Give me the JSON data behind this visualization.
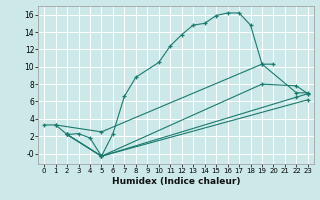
{
  "xlabel": "Humidex (Indice chaleur)",
  "bg_color": "#cce8e8",
  "grid_color": "#ffffff",
  "line_color": "#1a7a6e",
  "xlim": [
    -0.5,
    23.5
  ],
  "ylim": [
    -1.2,
    17.0
  ],
  "xticks": [
    0,
    1,
    2,
    3,
    4,
    5,
    6,
    7,
    8,
    9,
    10,
    11,
    12,
    13,
    14,
    15,
    16,
    17,
    18,
    19,
    20,
    21,
    22,
    23
  ],
  "yticks": [
    0,
    2,
    4,
    6,
    8,
    10,
    12,
    14,
    16
  ],
  "ytick_labels": [
    "-0",
    "2",
    "4",
    "6",
    "8",
    "10",
    "12",
    "14",
    "16"
  ],
  "series": [
    {
      "x": [
        0,
        1,
        2,
        3,
        4,
        5,
        6,
        7,
        8,
        10,
        11,
        12,
        13,
        14,
        15,
        16,
        17,
        18,
        19,
        20
      ],
      "y": [
        3.3,
        3.3,
        2.2,
        2.3,
        1.8,
        -0.3,
        2.3,
        6.6,
        8.8,
        10.5,
        12.4,
        13.7,
        14.8,
        15.0,
        15.9,
        16.2,
        16.2,
        14.8,
        10.3,
        10.3
      ]
    },
    {
      "x": [
        1,
        5,
        19,
        22,
        23
      ],
      "y": [
        3.3,
        2.5,
        10.3,
        7.0,
        7.0
      ]
    },
    {
      "comment": "line: x=2,y=2.2 to x=19,y=8.0 to x=22,y=7.8",
      "x": [
        2,
        5,
        19,
        22,
        23
      ],
      "y": [
        2.2,
        -0.3,
        8.0,
        7.8,
        6.9
      ]
    },
    {
      "comment": "nearly straight from x=2,y=2.2 to x=23,y=7.0",
      "x": [
        2,
        5,
        22,
        23
      ],
      "y": [
        2.2,
        -0.3,
        6.5,
        6.9
      ]
    },
    {
      "x": [
        2,
        5,
        23
      ],
      "y": [
        2.2,
        -0.3,
        6.2
      ]
    }
  ]
}
